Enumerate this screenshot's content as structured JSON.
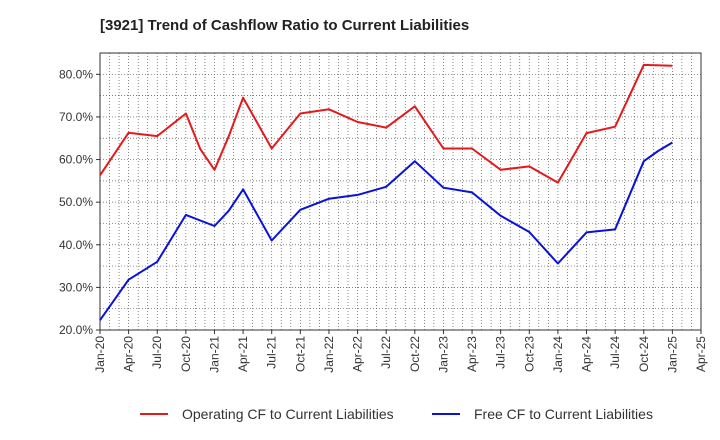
{
  "chart_data": {
    "type": "line",
    "title": "[3921]  Trend of Cashflow Ratio to Current Liabilities",
    "x": [
      "Jan-20",
      "Apr-20",
      "Jul-20",
      "Oct-20",
      "Jan-21",
      "Apr-21",
      "Jul-21",
      "Oct-21",
      "Jan-22",
      "Apr-22",
      "Jul-22",
      "Oct-22",
      "Jan-23",
      "Apr-23",
      "Jul-23",
      "Oct-23",
      "Jan-24",
      "Apr-24",
      "Jul-24",
      "Oct-24",
      "Jan-25"
    ],
    "x_ticks": [
      "Jan-20",
      "Apr-20",
      "Jul-20",
      "Oct-20",
      "Jan-21",
      "Apr-21",
      "Jul-21",
      "Oct-21",
      "Jan-22",
      "Apr-22",
      "Jul-22",
      "Oct-22",
      "Jan-23",
      "Apr-23",
      "Jul-23",
      "Oct-23",
      "Jan-24",
      "Apr-24",
      "Jul-24",
      "Oct-24",
      "Jan-25",
      "Apr-25"
    ],
    "y_ticks": [
      "20.0%",
      "30.0%",
      "40.0%",
      "50.0%",
      "60.0%",
      "70.0%",
      "80.0%"
    ],
    "ylim": [
      20,
      85
    ],
    "grid": true,
    "legend_position": "bottom",
    "series": [
      {
        "name": "Operating CF to Current Liabilities",
        "color": "#e31a1c",
        "values": [
          56.3,
          66.3,
          65.5,
          70.8,
          57.6,
          74.5,
          62.6,
          70.8,
          71.8,
          68.8,
          67.5,
          72.5,
          62.6,
          62.6,
          57.6,
          58.4,
          54.6,
          66.2,
          67.7,
          82.2,
          82.0
        ],
        "points": [
          {
            "i": 0,
            "v": 56.3
          },
          {
            "i": 1,
            "v": 66.3
          },
          {
            "i": 2,
            "v": 65.5
          },
          {
            "i": 3,
            "v": 70.8
          },
          {
            "i": 3.5,
            "v": 62.5
          },
          {
            "i": 4,
            "v": 57.6
          },
          {
            "i": 4.5,
            "v": 65.5
          },
          {
            "i": 5,
            "v": 74.5
          },
          {
            "i": 6,
            "v": 62.6
          },
          {
            "i": 7,
            "v": 70.8
          },
          {
            "i": 8,
            "v": 71.8
          },
          {
            "i": 9,
            "v": 68.8
          },
          {
            "i": 10,
            "v": 67.5
          },
          {
            "i": 11,
            "v": 72.5
          },
          {
            "i": 12,
            "v": 62.6
          },
          {
            "i": 13,
            "v": 62.6
          },
          {
            "i": 14,
            "v": 57.6
          },
          {
            "i": 15,
            "v": 58.4
          },
          {
            "i": 16,
            "v": 54.6
          },
          {
            "i": 17,
            "v": 66.2
          },
          {
            "i": 18,
            "v": 67.7
          },
          {
            "i": 19,
            "v": 82.2
          },
          {
            "i": 20,
            "v": 82.0
          }
        ]
      },
      {
        "name": "Free CF to Current Liabilities",
        "color": "#0a12d6",
        "values": [
          22.3,
          31.8,
          36.0,
          47.0,
          44.4,
          53.0,
          41.0,
          48.2,
          50.8,
          51.7,
          53.6,
          59.6,
          53.4,
          52.3,
          46.8,
          43.0,
          35.6,
          42.9,
          43.6,
          59.6,
          64.0
        ],
        "points": [
          {
            "i": 0,
            "v": 22.3
          },
          {
            "i": 1,
            "v": 31.8
          },
          {
            "i": 2,
            "v": 36.0
          },
          {
            "i": 3,
            "v": 47.0
          },
          {
            "i": 4,
            "v": 44.4
          },
          {
            "i": 4.5,
            "v": 48.0
          },
          {
            "i": 5,
            "v": 53.0
          },
          {
            "i": 6,
            "v": 41.0
          },
          {
            "i": 7,
            "v": 48.2
          },
          {
            "i": 8,
            "v": 50.8
          },
          {
            "i": 9,
            "v": 51.7
          },
          {
            "i": 10,
            "v": 53.6
          },
          {
            "i": 11,
            "v": 59.6
          },
          {
            "i": 12,
            "v": 53.4
          },
          {
            "i": 13,
            "v": 52.3
          },
          {
            "i": 14,
            "v": 46.8
          },
          {
            "i": 15,
            "v": 43.0
          },
          {
            "i": 16,
            "v": 35.6
          },
          {
            "i": 17,
            "v": 42.9
          },
          {
            "i": 18,
            "v": 43.6
          },
          {
            "i": 19,
            "v": 59.6
          },
          {
            "i": 19.5,
            "v": 62.0
          },
          {
            "i": 20,
            "v": 64.0
          }
        ]
      }
    ]
  }
}
